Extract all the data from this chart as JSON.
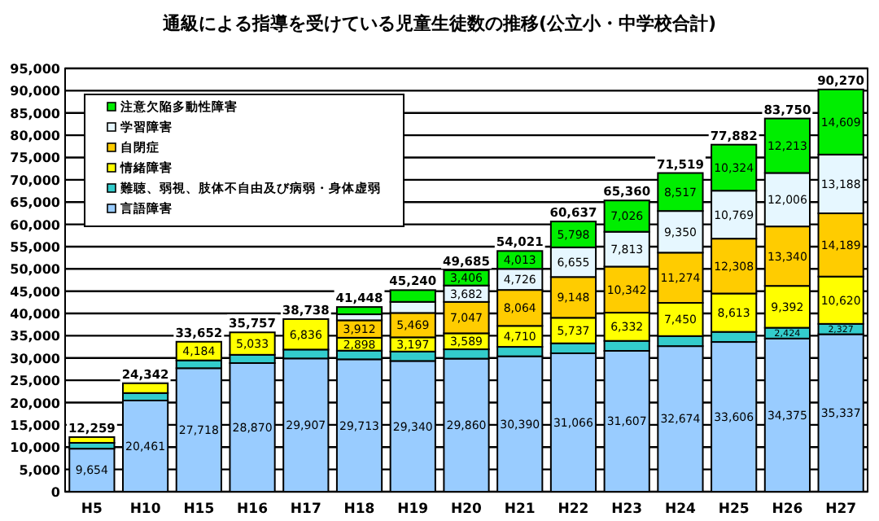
{
  "chart_data": {
    "type": "bar",
    "stacked": true,
    "title": "通級による指導を受けている児童生徒数の推移(公立小・中学校合計)",
    "categories": [
      "H5",
      "H10",
      "H15",
      "H16",
      "H17",
      "H18",
      "H19",
      "H20",
      "H21",
      "H22",
      "H23",
      "H24",
      "H25",
      "H26",
      "H27"
    ],
    "series": [
      {
        "name": "言語障害",
        "color": "#99ccff",
        "values": [
          9654,
          20461,
          27718,
          28870,
          29907,
          29713,
          29340,
          29860,
          30390,
          31066,
          31607,
          32674,
          33606,
          34375,
          35337
        ]
      },
      {
        "name": "難聴、弱視、肢体不自由及び病弱・身体虚弱",
        "color": "#33cccc",
        "values": [
          1314,
          1681,
          1750,
          1854,
          1995,
          1943,
          2113,
          2101,
          2118,
          2233,
          2240,
          2254,
          2262,
          2424,
          2327
        ]
      },
      {
        "name": "情緒障害",
        "color": "#ffff00",
        "values": [
          1291,
          2200,
          4184,
          5033,
          6836,
          2898,
          3197,
          3589,
          4710,
          5737,
          6332,
          7450,
          8613,
          9392,
          10620
        ]
      },
      {
        "name": "自閉症",
        "color": "#ffcc00",
        "values": [
          null,
          null,
          null,
          null,
          null,
          3912,
          5469,
          7047,
          8064,
          9148,
          10342,
          11274,
          12308,
          13340,
          14189
        ]
      },
      {
        "name": "学習障害",
        "color": "#e6f7ff",
        "values": [
          null,
          null,
          null,
          null,
          null,
          1351,
          2485,
          3682,
          4726,
          6655,
          7813,
          9350,
          10769,
          12006,
          13188
        ]
      },
      {
        "name": "注意欠陥多動性障害",
        "color": "#00ee00",
        "values": [
          null,
          null,
          null,
          null,
          null,
          1631,
          2636,
          3406,
          4013,
          5798,
          7026,
          8517,
          10324,
          12213,
          14609
        ]
      }
    ],
    "totals": [
      "12,259",
      "24,342",
      "33,652",
      "35,757",
      "38,738",
      "41,448",
      "45,240",
      "49,685",
      "54,021",
      "60,637",
      "65,360",
      "71,519",
      "77,882",
      "83,750",
      "90,270"
    ],
    "value_labels": [
      [
        "9,654",
        "20,461",
        "27,718",
        "28,870",
        "29,907",
        "29,713",
        "29,340",
        "29,860",
        "30,390",
        "31,066",
        "31,607",
        "32,674",
        "33,606",
        "34,375",
        "35,337"
      ],
      [
        null,
        null,
        null,
        null,
        null,
        null,
        null,
        null,
        null,
        null,
        null,
        null,
        null,
        "2,424",
        "2,327"
      ],
      [
        null,
        null,
        "4,184",
        "5,033",
        "6,836",
        "2,898",
        "3,197",
        "3,589",
        "4,710",
        "5,737",
        "6,332",
        "7,450",
        "8,613",
        "9,392",
        "10,620"
      ],
      [
        null,
        null,
        null,
        null,
        null,
        "3,912",
        "5,469",
        "7,047",
        "8,064",
        "9,148",
        "10,342",
        "11,274",
        "12,308",
        "13,340",
        "14,189"
      ],
      [
        null,
        null,
        null,
        null,
        null,
        null,
        null,
        "3,682",
        "4,726",
        "6,655",
        "7,813",
        "9,350",
        "10,769",
        "12,006",
        "13,188"
      ],
      [
        null,
        null,
        null,
        null,
        null,
        null,
        null,
        "3,406",
        "4,013",
        "5,798",
        "7,026",
        "8,517",
        "10,324",
        "12,213",
        "14,609"
      ]
    ],
    "ylim": [
      0,
      95000
    ],
    "yticks": [
      {
        "value": 0,
        "label": "0"
      },
      {
        "value": 5000,
        "label": "5,000"
      },
      {
        "value": 10000,
        "label": "10,000"
      },
      {
        "value": 15000,
        "label": "15,000"
      },
      {
        "value": 20000,
        "label": "20,000"
      },
      {
        "value": 25000,
        "label": "25,000"
      },
      {
        "value": 30000,
        "label": "30,000"
      },
      {
        "value": 35000,
        "label": "35,000"
      },
      {
        "value": 40000,
        "label": "40,000"
      },
      {
        "value": 45000,
        "label": "45,000"
      },
      {
        "value": 50000,
        "label": "50,000"
      },
      {
        "value": 55000,
        "label": "55,000"
      },
      {
        "value": 60000,
        "label": "60,000"
      },
      {
        "value": 65000,
        "label": "65,000"
      },
      {
        "value": 70000,
        "label": "70,000"
      },
      {
        "value": 75000,
        "label": "75,000"
      },
      {
        "value": 80000,
        "label": "80,000"
      },
      {
        "value": 85000,
        "label": "85,000"
      },
      {
        "value": 90000,
        "label": "90,000"
      },
      {
        "value": 95000,
        "label": "95,000"
      }
    ],
    "grid": "y",
    "legend": "top left"
  }
}
